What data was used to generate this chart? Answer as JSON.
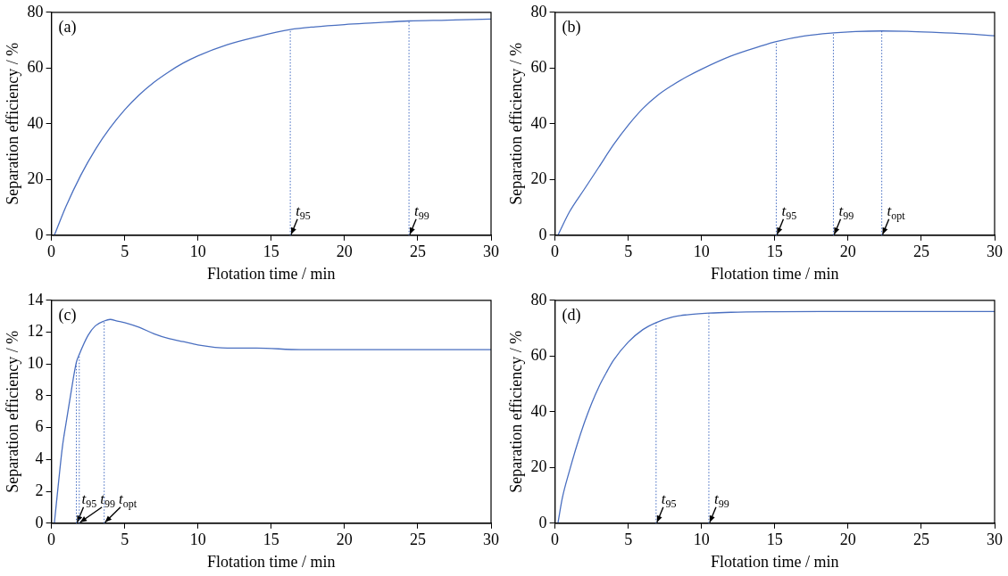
{
  "chart_data": [
    {
      "type": "line",
      "xlabel": "Flotation time / min",
      "ylabel": "Separation efficiency / %",
      "annotations": [
        "(a)"
      ],
      "xlim": [
        0,
        30
      ],
      "xticks": [
        0,
        5,
        10,
        15,
        20,
        25,
        30
      ],
      "ylim": [
        0,
        80
      ],
      "yticks": [
        0,
        20,
        40,
        60,
        80
      ],
      "grid": false,
      "legend": false,
      "marker": "none",
      "line_style": "solid",
      "series": [
        {
          "color": "#4a6fc0",
          "x": [
            0.2,
            1,
            2,
            3,
            4,
            5,
            6,
            7,
            8,
            9,
            10,
            12,
            14,
            16.3,
            18,
            20,
            22,
            24.4,
            27,
            30
          ],
          "values": [
            0,
            10.4,
            21.5,
            30.8,
            38.5,
            45,
            50.4,
            54.9,
            58.6,
            61.8,
            64.4,
            68.4,
            71.2,
            73.8,
            74.8,
            75.6,
            76.2,
            76.9,
            77.2,
            77.6
          ]
        }
      ],
      "ref_lines": [
        {
          "axis": "x",
          "value": 16.3,
          "label": "t$_{95}$",
          "color": "#3f68c0",
          "line_style": "dotted"
        },
        {
          "axis": "x",
          "value": 24.4,
          "label": "t$_{99}$",
          "color": "#3f68c0",
          "line_style": "dotted"
        }
      ]
    },
    {
      "type": "line",
      "xlabel": "Flotation time / min",
      "ylabel": "Separation efficiency / %",
      "annotations": [
        "(b)"
      ],
      "xlim": [
        0,
        30
      ],
      "xticks": [
        0,
        5,
        10,
        15,
        20,
        25,
        30
      ],
      "ylim": [
        0,
        80
      ],
      "yticks": [
        0,
        20,
        40,
        60,
        80
      ],
      "grid": false,
      "legend": false,
      "marker": "none",
      "line_style": "solid",
      "series": [
        {
          "color": "#4a6fc0",
          "x": [
            0.2,
            1,
            2,
            3,
            4,
            5,
            6,
            7,
            8,
            9,
            10,
            12,
            14,
            15.1,
            17,
            19,
            20.5,
            22.3,
            24,
            26,
            28,
            30
          ],
          "values": [
            0,
            8.5,
            16.5,
            24.5,
            32.5,
            39.5,
            45.5,
            50.2,
            53.8,
            56.9,
            59.6,
            64.3,
            67.8,
            69.5,
            71.5,
            72.6,
            73.1,
            73.3,
            73.2,
            72.8,
            72.3,
            71.6
          ]
        }
      ],
      "ref_lines": [
        {
          "axis": "x",
          "value": 15.1,
          "label": "t$_{95}$",
          "color": "#3f68c0",
          "line_style": "dotted"
        },
        {
          "axis": "x",
          "value": 19,
          "label": "t$_{99}$",
          "color": "#3f68c0",
          "line_style": "dotted"
        },
        {
          "axis": "x",
          "value": 22.3,
          "label": "t$_{opt}$",
          "color": "#3f68c0",
          "line_style": "dotted"
        }
      ]
    },
    {
      "type": "line",
      "xlabel": "Flotation time / min",
      "ylabel": "Separation efficiency / %",
      "annotations": [
        "(c)"
      ],
      "xlim": [
        0,
        30
      ],
      "xticks": [
        0,
        5,
        10,
        15,
        20,
        25,
        30
      ],
      "ylim": [
        0,
        14
      ],
      "yticks": [
        0,
        2,
        4,
        6,
        8,
        10,
        12,
        14
      ],
      "grid": false,
      "legend": false,
      "marker": "none",
      "line_style": "solid",
      "series": [
        {
          "color": "#4a6fc0",
          "x": [
            0.2,
            0.5,
            0.75,
            1,
            1.3,
            1.7,
            1.9,
            2.5,
            3,
            3.6,
            4,
            4.5,
            5,
            6,
            7,
            8,
            9,
            10,
            12,
            14,
            17,
            20,
            25,
            30
          ],
          "values": [
            0,
            2.7,
            4.8,
            6.3,
            8,
            10.1,
            10.6,
            11.8,
            12.4,
            12.7,
            12.8,
            12.7,
            12.6,
            12.3,
            11.9,
            11.6,
            11.4,
            11.2,
            11,
            11,
            10.9,
            10.9,
            10.9,
            10.9
          ]
        }
      ],
      "ref_lines": [
        {
          "axis": "x",
          "value": 1.7,
          "label": "t$_{95}$",
          "color": "#3f68c0",
          "line_style": "dotted"
        },
        {
          "axis": "x",
          "value": 1.9,
          "label": "t$_{99}$",
          "color": "#3f68c0",
          "line_style": "dotted"
        },
        {
          "axis": "x",
          "value": 3.6,
          "label": "t$_{opt}$",
          "color": "#3f68c0",
          "line_style": "dotted"
        }
      ]
    },
    {
      "type": "line",
      "xlabel": "Flotation time / min",
      "ylabel": "Separation efficiency / %",
      "annotations": [
        "(d)"
      ],
      "xlim": [
        0,
        30
      ],
      "xticks": [
        0,
        5,
        10,
        15,
        20,
        25,
        30
      ],
      "ylim": [
        0,
        80
      ],
      "yticks": [
        0,
        20,
        40,
        60,
        80
      ],
      "grid": false,
      "legend": false,
      "marker": "none",
      "line_style": "solid",
      "series": [
        {
          "color": "#4a6fc0",
          "x": [
            0.2,
            0.5,
            1,
            1.5,
            2,
            2.5,
            3,
            3.5,
            4,
            5,
            6,
            6.9,
            8,
            9,
            10.5,
            12,
            15,
            20,
            25,
            30
          ],
          "values": [
            0,
            9,
            19,
            28,
            36,
            43,
            49,
            54,
            58.5,
            65,
            69.5,
            72,
            74,
            74.8,
            75.4,
            75.7,
            75.9,
            76,
            76,
            76
          ]
        }
      ],
      "ref_lines": [
        {
          "axis": "x",
          "value": 6.9,
          "label": "t$_{95}$",
          "color": "#3f68c0",
          "line_style": "dotted"
        },
        {
          "axis": "x",
          "value": 10.5,
          "label": "t$_{99}$",
          "color": "#3f68c0",
          "line_style": "dotted"
        }
      ]
    }
  ]
}
